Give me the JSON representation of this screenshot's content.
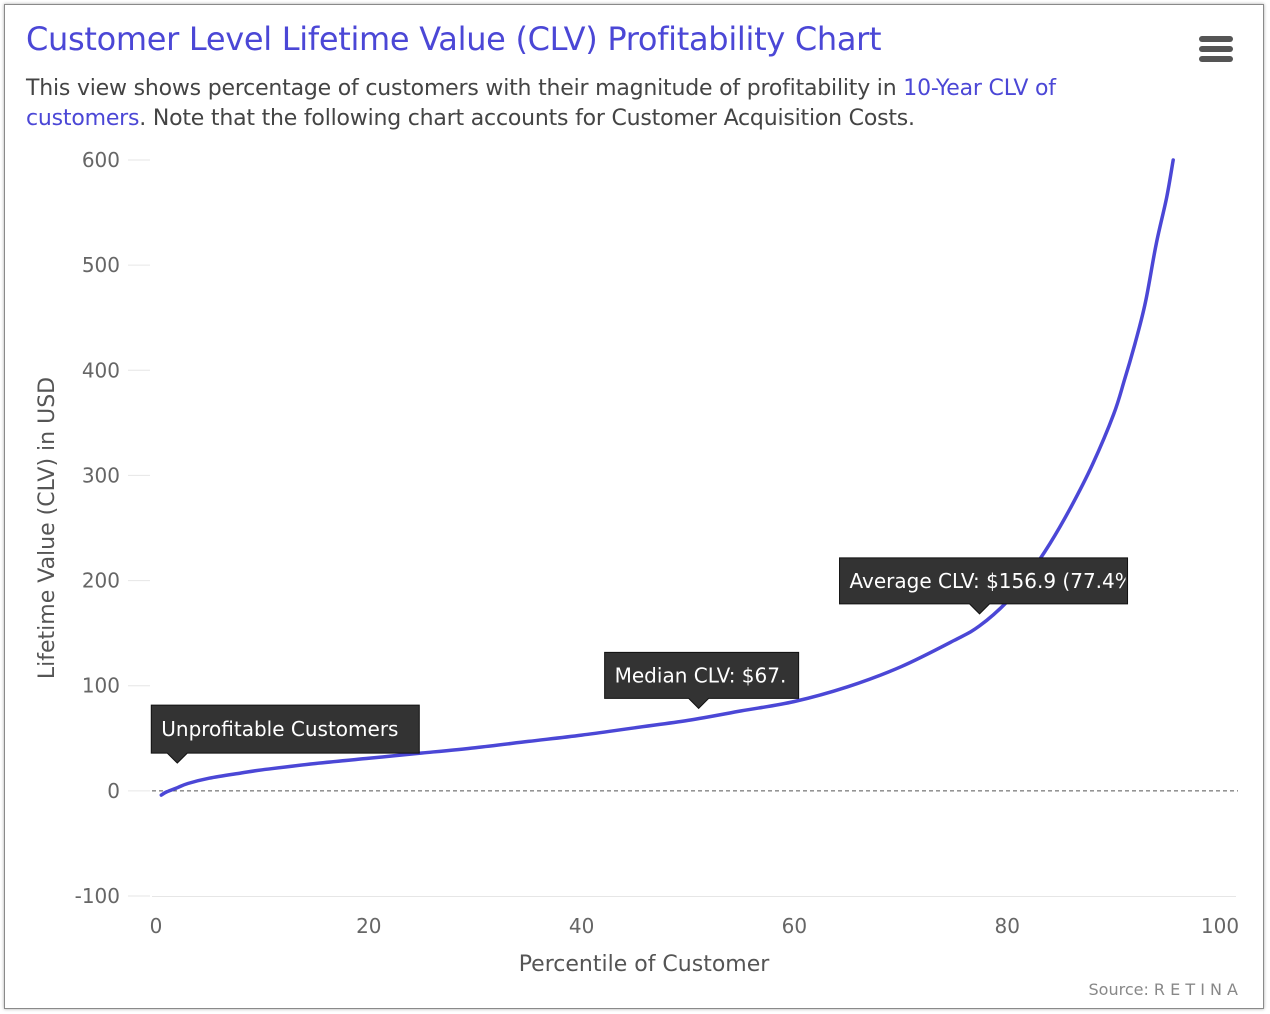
{
  "header": {
    "title": "Customer Level Lifetime Value (CLV) Profitability Chart",
    "subtitle_before": "This view shows percentage of customers with their magnitude of profitability in ",
    "subtitle_link": "10-Year CLV of customers",
    "subtitle_after": ". Note that the following chart accounts for Customer Acquisition Costs.",
    "menu_icon": "hamburger-menu-icon"
  },
  "source": "Source: R E T I N A",
  "colors": {
    "accent": "#4b47d6",
    "line": "#4b47d6",
    "tooltip_bg": "#333333",
    "reference_line": "#555555"
  },
  "chart_data": {
    "type": "line",
    "xlabel": "Percentile of Customer",
    "ylabel": "Lifetime Value (CLV) in USD",
    "xlim": [
      0,
      100
    ],
    "ylim": [
      -100,
      600
    ],
    "xticks": [
      0,
      20,
      40,
      60,
      80,
      100
    ],
    "yticks": [
      -100,
      0,
      100,
      200,
      300,
      400,
      500,
      600
    ],
    "grid": "horizontal",
    "reference_lines": [
      {
        "y": 0,
        "style": "dashed"
      }
    ],
    "series": [
      {
        "x": [
          0.5,
          1,
          2,
          3,
          5,
          8,
          10,
          15,
          20,
          25,
          30,
          35,
          40,
          45,
          50,
          55,
          60,
          65,
          70,
          75,
          77.4,
          80,
          82,
          84,
          86,
          88,
          90,
          91,
          92,
          93,
          94,
          95,
          95.6
        ],
        "y": [
          -4,
          -1,
          3,
          7,
          12,
          17,
          20,
          26,
          31,
          36,
          41,
          47,
          53,
          60,
          67,
          76,
          85,
          99,
          118,
          143,
          156.9,
          180,
          205,
          235,
          270,
          310,
          358,
          390,
          425,
          465,
          520,
          565,
          600
        ]
      }
    ],
    "annotations": [
      {
        "label": "Unprofitable Customers",
        "x": 2,
        "y": 15
      },
      {
        "label": "Median CLV: $67.",
        "x": 51,
        "y": 67
      },
      {
        "label": "Average CLV: $156.9 (77.4%",
        "x": 77.4,
        "y": 156.9
      }
    ]
  }
}
